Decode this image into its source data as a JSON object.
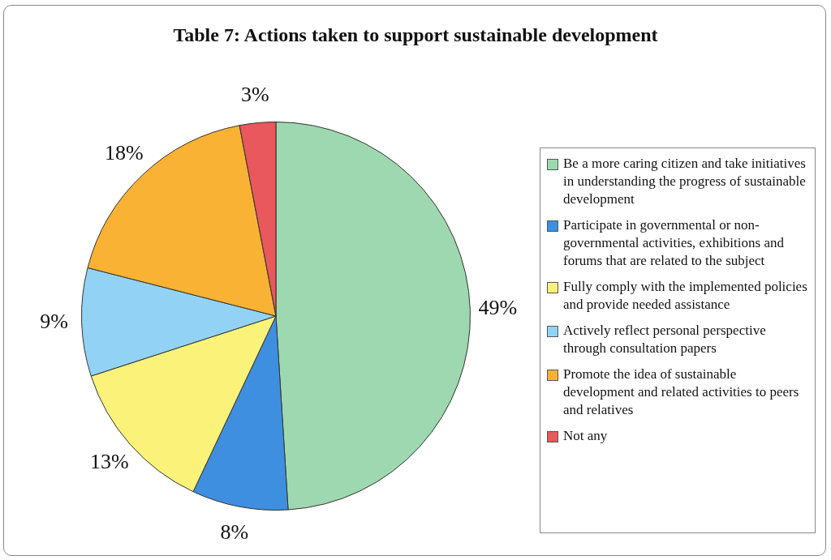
{
  "chart_data": {
    "type": "pie",
    "title": "Table 7: Actions taken to support sustainable development",
    "categories": [
      "Be a more caring citizen and take initiatives in understanding the progress of sustainable development",
      "Participate in governmental or non-governmental activities, exhibitions and forums that are related to the subject",
      "Fully comply with the implemented policies and provide needed assistance",
      "Actively reflect personal perspective through consultation papers",
      "Promote the idea of sustainable development and related activities to peers and relatives",
      "Not any"
    ],
    "values": [
      49,
      8,
      13,
      9,
      18,
      3
    ],
    "colors": [
      "#9dd8b0",
      "#3f8fe0",
      "#fbf27a",
      "#92d3f5",
      "#f9b233",
      "#e8585c"
    ],
    "value_labels": [
      "49%",
      "8%",
      "13%",
      "9%",
      "18%",
      "3%"
    ],
    "legend": "right"
  }
}
